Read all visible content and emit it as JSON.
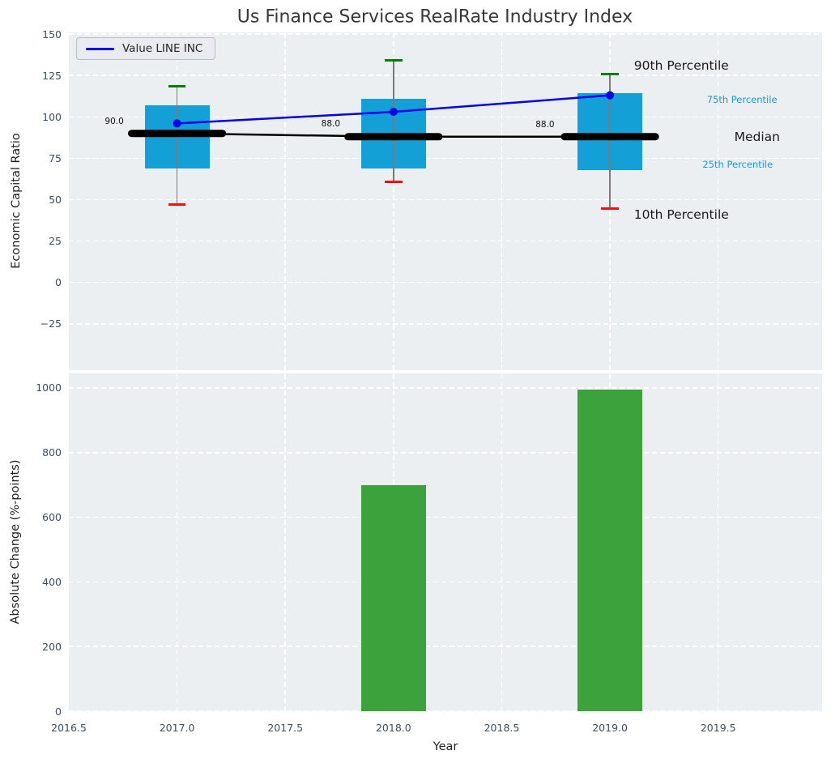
{
  "title": "Us Finance Services RealRate Industry Index",
  "colors": {
    "axes_bg": "#eceff1",
    "grid": "#ffffff",
    "tick_color": "#3d4d63",
    "title_color": "#383838",
    "axis_label_color": "#1f1f1f",
    "box_fill": "#12a0d7",
    "bar_fill": "#3ba23c",
    "value_line": "#0000ee",
    "median_line": "#000000",
    "whisker": "#7a7a7a",
    "cap_high": "#007f00",
    "cap_low": "#ea1212",
    "cyan_text": "#189ad2",
    "dark_text": "#1a1a1a",
    "legend_bg": "#eaeaf1",
    "legend_border": "#bcbcc9",
    "legend_text": "#262626"
  },
  "chart_data": [
    {
      "type": "box",
      "title": "Us Finance Services RealRate Industry Index",
      "ylabel": "Economic Capital Ratio",
      "legend": {
        "label": "Value LINE INC",
        "position": "upper-left"
      },
      "xlim": [
        2016.5,
        2019.98
      ],
      "ylim": [
        -53,
        151
      ],
      "yticks": [
        {
          "v": 150,
          "label": "150"
        },
        {
          "v": 125,
          "label": "125"
        },
        {
          "v": 100,
          "label": "100"
        },
        {
          "v": 75,
          "label": "75"
        },
        {
          "v": 50,
          "label": "50"
        },
        {
          "v": 25,
          "label": "25"
        },
        {
          "v": 0,
          "label": "0"
        },
        {
          "v": -25,
          "label": "−25"
        }
      ],
      "xgrid": [
        2017,
        2017.5,
        2018,
        2018.5,
        2019,
        2019.5
      ],
      "grid": true,
      "years": [
        2017,
        2018,
        2019
      ],
      "series": [
        {
          "name": "Value LINE INC",
          "values": [
            96,
            103,
            113
          ]
        },
        {
          "name": "Median",
          "values": [
            90,
            88,
            88
          ]
        },
        {
          "name": "10th Percentile",
          "values": [
            47,
            60.5,
            44.5
          ]
        },
        {
          "name": "25th Percentile",
          "values": [
            69,
            69,
            68
          ]
        },
        {
          "name": "75th Percentile",
          "values": [
            107,
            111,
            114.5
          ]
        },
        {
          "name": "90th Percentile",
          "values": [
            118.5,
            134,
            126
          ]
        }
      ],
      "box_width": 0.3,
      "median_halfwidth": 0.21,
      "cap_halfwidth": 0.04,
      "median_value_labels": [
        {
          "text": "90.0",
          "x": 2016.71,
          "y": 97
        },
        {
          "text": "88.0",
          "x": 2017.71,
          "y": 95.5
        },
        {
          "text": "88.0",
          "x": 2018.7,
          "y": 95
        }
      ],
      "percentile_labels": [
        {
          "text": "90th Percentile",
          "x": 2019.33,
          "y": 131,
          "style": "large",
          "color": "dark"
        },
        {
          "text": "75th Percentile",
          "x": 2019.61,
          "y": 110.5,
          "style": "small",
          "color": "cyan"
        },
        {
          "text": "Median",
          "x": 2019.68,
          "y": 88,
          "style": "large",
          "color": "dark"
        },
        {
          "text": "25th Percentile",
          "x": 2019.59,
          "y": 71.5,
          "style": "small",
          "color": "cyan"
        },
        {
          "text": "10th Percentile",
          "x": 2019.33,
          "y": 41,
          "style": "large",
          "color": "dark"
        }
      ]
    },
    {
      "type": "bar",
      "ylabel": "Absolute Change (%-points)",
      "xlabel": "Year",
      "xlim": [
        2016.5,
        2019.98
      ],
      "ylim": [
        0,
        1045
      ],
      "yticks": [
        {
          "v": 1000,
          "label": "1000"
        },
        {
          "v": 800,
          "label": "800"
        },
        {
          "v": 600,
          "label": "600"
        },
        {
          "v": 400,
          "label": "400"
        },
        {
          "v": 200,
          "label": "200"
        },
        {
          "v": 0,
          "label": "0"
        }
      ],
      "xticks": [
        {
          "v": 2016.5,
          "label": "2016.5"
        },
        {
          "v": 2017.0,
          "label": "2017.0"
        },
        {
          "v": 2017.5,
          "label": "2017.5"
        },
        {
          "v": 2018.0,
          "label": "2018.0"
        },
        {
          "v": 2018.5,
          "label": "2018.5"
        },
        {
          "v": 2019.0,
          "label": "2019.0"
        },
        {
          "v": 2019.5,
          "label": "2019.5"
        }
      ],
      "grid": true,
      "categories": [
        2018,
        2019
      ],
      "values": [
        700,
        995
      ],
      "bar_width": 0.3
    }
  ]
}
